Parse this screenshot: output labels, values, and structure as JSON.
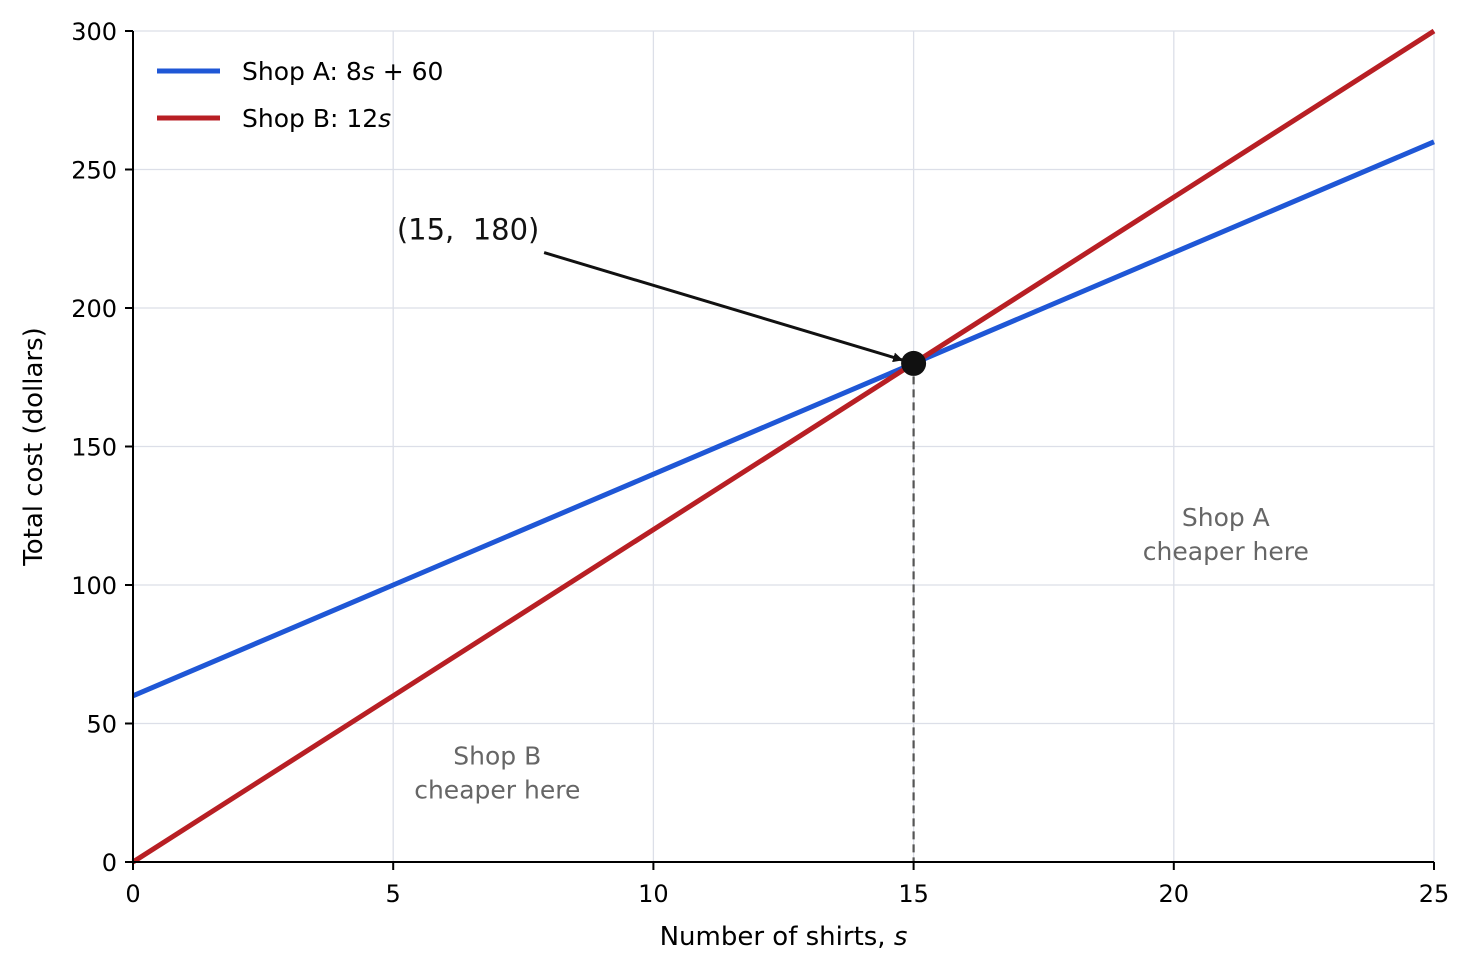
{
  "chart_data": {
    "type": "line",
    "title": "",
    "xlabel": "Number of shirts, ",
    "xlabel_var": "s",
    "ylabel": "Total cost (dollars)",
    "xlim": [
      0,
      25
    ],
    "ylim": [
      0,
      300
    ],
    "xticks": [
      0,
      5,
      10,
      15,
      20,
      25
    ],
    "yticks": [
      0,
      50,
      100,
      150,
      200,
      250,
      300
    ],
    "grid": true,
    "legend_position": "top-left",
    "series": [
      {
        "name": "Shop A: 8s + 60",
        "legend_parts": [
          "Shop A: 8",
          "s",
          " + 60"
        ],
        "color": "#1f57d6",
        "x": [
          0,
          5,
          10,
          15,
          20,
          25
        ],
        "y": [
          60,
          100,
          140,
          180,
          220,
          260
        ]
      },
      {
        "name": "Shop B: 12s",
        "legend_parts": [
          "Shop B: 12",
          "s",
          ""
        ],
        "color": "#b81f24",
        "x": [
          0,
          5,
          10,
          15,
          20,
          25
        ],
        "y": [
          0,
          60,
          120,
          180,
          240,
          300
        ]
      }
    ],
    "intersection": {
      "x": 15,
      "y": 180,
      "label": "(15,  180)",
      "label_anchor": {
        "x": 7.9,
        "y": 220
      }
    },
    "annotations": [
      {
        "lines": [
          "Shop A",
          "cheaper here"
        ],
        "x": 21,
        "y": 118
      },
      {
        "lines": [
          "Shop B",
          "cheaper here"
        ],
        "x": 7,
        "y": 32
      }
    ]
  }
}
